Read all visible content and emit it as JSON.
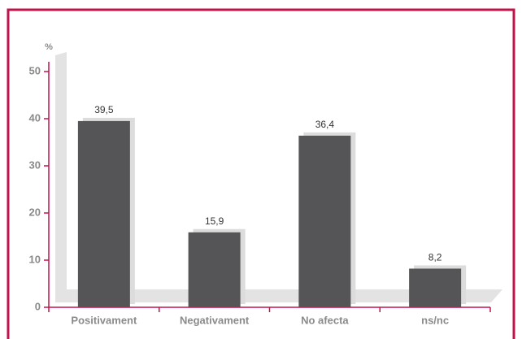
{
  "chart_data": {
    "type": "bar",
    "ylabel": "%",
    "categories": [
      "Positivament",
      "Negativament",
      "No afecta",
      "ns/nc"
    ],
    "values": [
      39.5,
      15.9,
      36.4,
      8.2
    ],
    "value_labels": [
      "39,5",
      "15,9",
      "36,4",
      "8,2"
    ],
    "color": "#555557",
    "ylim": [
      0,
      50
    ],
    "yticks": [
      0,
      10,
      20,
      30,
      40,
      50
    ],
    "grid": false
  }
}
